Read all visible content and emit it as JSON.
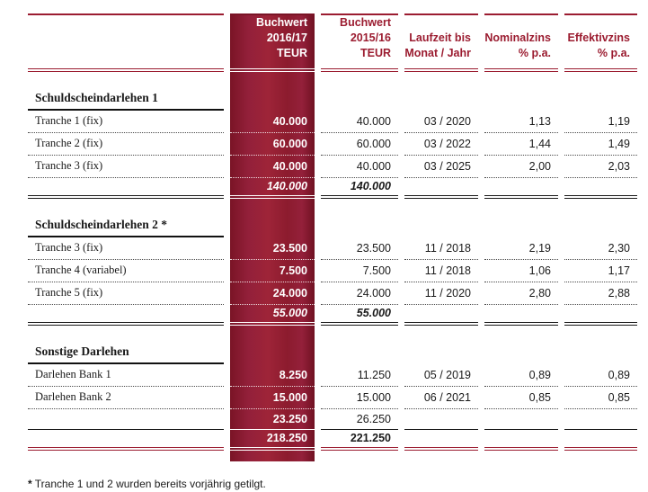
{
  "colors": {
    "accent": "#9B1C30",
    "band_dark": "#701122",
    "band_mid": "#9E2438",
    "text": "#1A1A1A",
    "white": "#FFFFFF"
  },
  "header": {
    "columns": [
      {
        "id": "buchwert-2016-17",
        "lines": [
          "Buchwert",
          "2016/17",
          "TEUR"
        ]
      },
      {
        "id": "buchwert-2015-16",
        "lines": [
          "Buchwert",
          "2015/16",
          "TEUR"
        ]
      },
      {
        "id": "laufzeit",
        "lines": [
          "Laufzeit bis",
          "Monat / Jahr"
        ]
      },
      {
        "id": "nominalzins",
        "lines": [
          "Nominalzins",
          "% p.a."
        ]
      },
      {
        "id": "effektivzins",
        "lines": [
          "Effektivzins",
          "% p.a."
        ]
      }
    ]
  },
  "sections": [
    {
      "title": "Schuldscheindarlehen 1",
      "rows": [
        {
          "label": "Tranche 1 (fix)",
          "bw_2016_17": "40.000",
          "bw_2015_16": "40.000",
          "laufzeit": "03 / 2020",
          "nominalzins": "1,13",
          "effektivzins": "1,19"
        },
        {
          "label": "Tranche 2 (fix)",
          "bw_2016_17": "60.000",
          "bw_2015_16": "60.000",
          "laufzeit": "03 / 2022",
          "nominalzins": "1,44",
          "effektivzins": "1,49"
        },
        {
          "label": "Tranche 3 (fix)",
          "bw_2016_17": "40.000",
          "bw_2015_16": "40.000",
          "laufzeit": "03 / 2025",
          "nominalzins": "2,00",
          "effektivzins": "2,03"
        }
      ],
      "total": {
        "bw_2016_17": "140.000",
        "bw_2015_16": "140.000"
      }
    },
    {
      "title": "Schuldscheindarlehen 2 *",
      "rows": [
        {
          "label": "Tranche 3 (fix)",
          "bw_2016_17": "23.500",
          "bw_2015_16": "23.500",
          "laufzeit": "11 / 2018",
          "nominalzins": "2,19",
          "effektivzins": "2,30"
        },
        {
          "label": "Tranche 4 (variabel)",
          "bw_2016_17": "7.500",
          "bw_2015_16": "7.500",
          "laufzeit": "11 / 2018",
          "nominalzins": "1,06",
          "effektivzins": "1,17"
        },
        {
          "label": "Tranche 5 (fix)",
          "bw_2016_17": "24.000",
          "bw_2015_16": "24.000",
          "laufzeit": "11 / 2020",
          "nominalzins": "2,80",
          "effektivzins": "2,88"
        }
      ],
      "total": {
        "bw_2016_17": "55.000",
        "bw_2015_16": "55.000"
      }
    },
    {
      "title": "Sonstige Darlehen",
      "rows": [
        {
          "label": "Darlehen Bank 1",
          "bw_2016_17": "8.250",
          "bw_2015_16": "11.250",
          "laufzeit": "05 / 2019",
          "nominalzins": "0,89",
          "effektivzins": "0,89"
        },
        {
          "label": "Darlehen Bank 2",
          "bw_2016_17": "15.000",
          "bw_2015_16": "15.000",
          "laufzeit": "06 / 2021",
          "nominalzins": "0,85",
          "effektivzins": "0,85"
        }
      ],
      "total": {
        "bw_2016_17": "23.250",
        "bw_2015_16": "26.250"
      }
    }
  ],
  "grand_total": {
    "bw_2016_17": "218.250",
    "bw_2015_16": "221.250"
  },
  "footnote": {
    "marker": "*",
    "text": "Tranche 1 und 2 wurden bereits vorjährig getilgt."
  }
}
